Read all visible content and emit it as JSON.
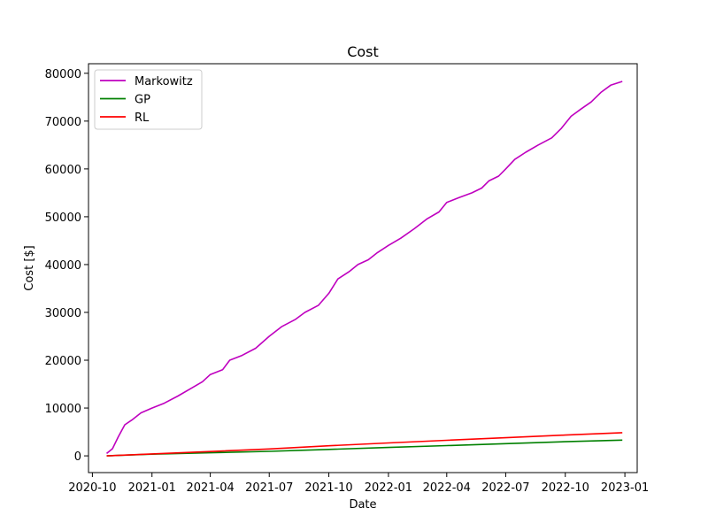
{
  "chart_data": {
    "type": "line",
    "title": "Cost",
    "xlabel": "Date",
    "ylabel": "Cost [$]",
    "xlim": [
      "2020-09-25",
      "2023-01-20"
    ],
    "ylim": [
      -3500,
      82000
    ],
    "legend_position": "top-left",
    "grid": false,
    "x_ticks": [
      "2020-10-01",
      "2021-01-01",
      "2021-04-01",
      "2021-07-01",
      "2021-10-01",
      "2022-01-01",
      "2022-04-01",
      "2022-07-01",
      "2022-10-01",
      "2023-01-01"
    ],
    "x_tick_labels": [
      "2020-10",
      "2021-01",
      "2021-04",
      "2021-07",
      "2021-10",
      "2022-01",
      "2022-04",
      "2022-07",
      "2022-10",
      "2023-01"
    ],
    "y_ticks": [
      0,
      10000,
      20000,
      30000,
      40000,
      50000,
      60000,
      70000,
      80000
    ],
    "y_tick_labels": [
      "0",
      "10000",
      "20000",
      "30000",
      "40000",
      "50000",
      "60000",
      "70000",
      "80000"
    ],
    "series": [
      {
        "name": "Markowitz",
        "color": "#bf00bf",
        "points": [
          [
            "2020-10-23",
            500
          ],
          [
            "2020-11-01",
            1500
          ],
          [
            "2020-11-10",
            4000
          ],
          [
            "2020-11-20",
            6500
          ],
          [
            "2020-12-01",
            7500
          ],
          [
            "2020-12-15",
            9000
          ],
          [
            "2021-01-01",
            10000
          ],
          [
            "2021-01-20",
            11000
          ],
          [
            "2021-02-10",
            12500
          ],
          [
            "2021-03-01",
            14000
          ],
          [
            "2021-03-20",
            15500
          ],
          [
            "2021-04-01",
            17000
          ],
          [
            "2021-04-20",
            18000
          ],
          [
            "2021-05-01",
            20000
          ],
          [
            "2021-05-20",
            21000
          ],
          [
            "2021-06-10",
            22500
          ],
          [
            "2021-07-01",
            25000
          ],
          [
            "2021-07-20",
            27000
          ],
          [
            "2021-08-10",
            28500
          ],
          [
            "2021-08-25",
            30000
          ],
          [
            "2021-09-15",
            31500
          ],
          [
            "2021-10-01",
            34000
          ],
          [
            "2021-10-15",
            37000
          ],
          [
            "2021-11-01",
            38500
          ],
          [
            "2021-11-15",
            40000
          ],
          [
            "2021-12-01",
            41000
          ],
          [
            "2021-12-15",
            42500
          ],
          [
            "2022-01-01",
            44000
          ],
          [
            "2022-01-20",
            45500
          ],
          [
            "2022-02-10",
            47500
          ],
          [
            "2022-03-01",
            49500
          ],
          [
            "2022-03-20",
            51000
          ],
          [
            "2022-04-01",
            53000
          ],
          [
            "2022-04-20",
            54000
          ],
          [
            "2022-05-10",
            55000
          ],
          [
            "2022-05-25",
            56000
          ],
          [
            "2022-06-05",
            57500
          ],
          [
            "2022-06-20",
            58500
          ],
          [
            "2022-07-01",
            60000
          ],
          [
            "2022-07-15",
            62000
          ],
          [
            "2022-08-01",
            63500
          ],
          [
            "2022-08-20",
            65000
          ],
          [
            "2022-09-10",
            66500
          ],
          [
            "2022-09-25",
            68500
          ],
          [
            "2022-10-10",
            71000
          ],
          [
            "2022-10-25",
            72500
          ],
          [
            "2022-11-10",
            74000
          ],
          [
            "2022-11-25",
            76000
          ],
          [
            "2022-12-10",
            77500
          ],
          [
            "2022-12-28",
            78300
          ]
        ]
      },
      {
        "name": "GP",
        "color": "#008000",
        "points": [
          [
            "2020-10-23",
            0
          ],
          [
            "2021-01-01",
            350
          ],
          [
            "2021-04-01",
            650
          ],
          [
            "2021-07-01",
            950
          ],
          [
            "2021-10-01",
            1350
          ],
          [
            "2022-01-01",
            1750
          ],
          [
            "2022-04-01",
            2150
          ],
          [
            "2022-07-01",
            2550
          ],
          [
            "2022-10-01",
            2950
          ],
          [
            "2022-12-28",
            3300
          ]
        ]
      },
      {
        "name": "RL",
        "color": "#ff0000",
        "points": [
          [
            "2020-10-23",
            0
          ],
          [
            "2021-01-01",
            400
          ],
          [
            "2021-04-01",
            900
          ],
          [
            "2021-07-01",
            1450
          ],
          [
            "2021-10-01",
            2100
          ],
          [
            "2022-01-01",
            2700
          ],
          [
            "2022-04-01",
            3250
          ],
          [
            "2022-07-01",
            3800
          ],
          [
            "2022-10-01",
            4350
          ],
          [
            "2022-12-28",
            4850
          ]
        ]
      }
    ]
  }
}
